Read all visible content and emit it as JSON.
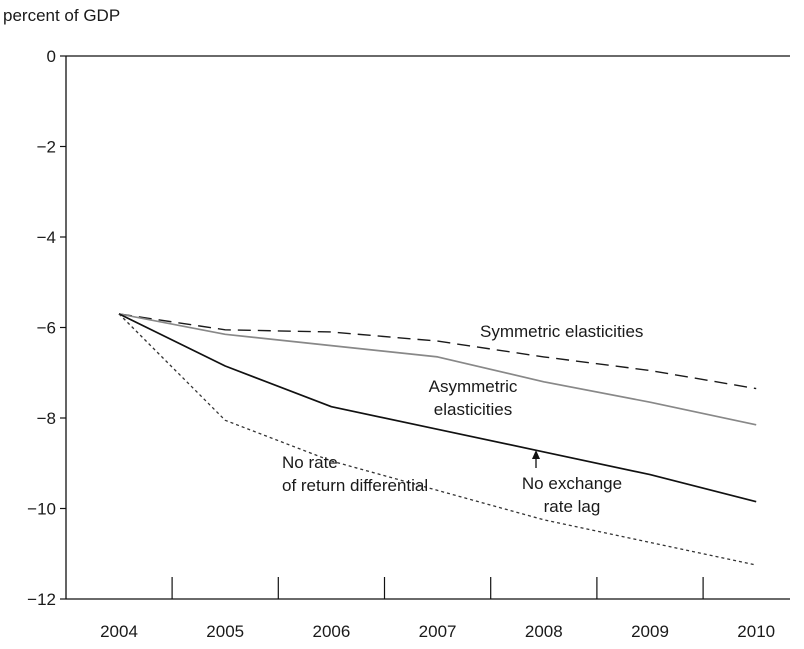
{
  "chart_data": {
    "type": "line",
    "title": "",
    "ylabel": "percent of GDP",
    "xlabel": "",
    "x": [
      2004,
      2005,
      2006,
      2007,
      2008,
      2009,
      2010
    ],
    "xlim": [
      2004,
      2010
    ],
    "ylim": [
      -12,
      0
    ],
    "yticks": [
      0,
      -2,
      -4,
      -6,
      -8,
      -10,
      -12
    ],
    "ytick_labels": [
      "0",
      "−2",
      "−4",
      "−6",
      "−8",
      "−10",
      "−12"
    ],
    "xtick_labels": [
      "2004",
      "2005",
      "2006",
      "2007",
      "2008",
      "2009",
      "2010"
    ],
    "grid": false,
    "legend": "none",
    "series": [
      {
        "name": "Symmetric elasticities",
        "style": "dashed",
        "color": "#1a1a1a",
        "values": [
          -5.7,
          -6.05,
          -6.1,
          -6.3,
          -6.65,
          -6.95,
          -7.35
        ]
      },
      {
        "name": "Asymmetric elasticities",
        "style": "solid",
        "color": "#888888",
        "values": [
          -5.7,
          -6.15,
          -6.4,
          -6.65,
          -7.2,
          -7.65,
          -8.15
        ]
      },
      {
        "name": "No exchange rate lag",
        "style": "solid",
        "color": "#111111",
        "values": [
          -5.7,
          -6.85,
          -7.75,
          -8.25,
          -8.75,
          -9.25,
          -9.85
        ]
      },
      {
        "name": "No rate of return differential",
        "style": "dotted",
        "color": "#333333",
        "values": [
          -5.7,
          -8.05,
          -8.95,
          -9.6,
          -10.25,
          -10.75,
          -11.25
        ]
      }
    ],
    "annotations": {
      "symmetric": "Symmetric elasticities",
      "asymmetric_line1": "Asymmetric",
      "asymmetric_line2": "elasticities",
      "nolag_line1": "No exchange",
      "nolag_line2": "rate lag",
      "noreturn_line1": "No rate",
      "noreturn_line2": "of return differential"
    }
  }
}
